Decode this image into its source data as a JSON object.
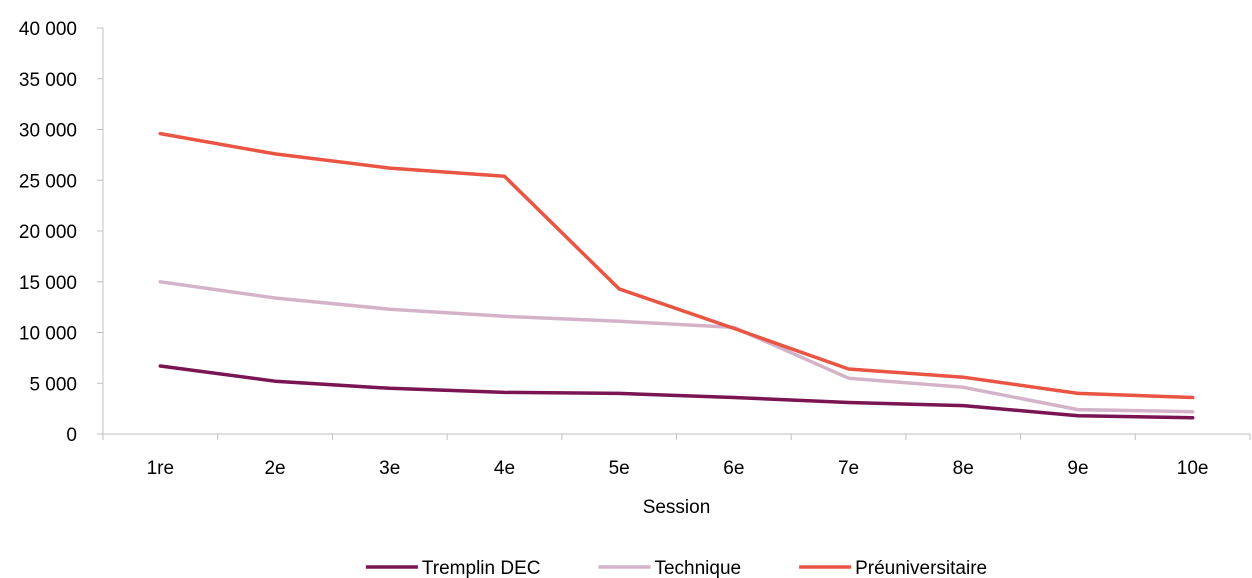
{
  "chart_data": {
    "type": "line",
    "xlabel": "Session",
    "ylabel": "",
    "ylim": [
      0,
      40000
    ],
    "yticks": [
      0,
      5000,
      10000,
      15000,
      20000,
      25000,
      30000,
      35000,
      40000
    ],
    "ytick_labels": [
      "0",
      "5 000",
      "10 000",
      "15 000",
      "20 000",
      "25 000",
      "30 000",
      "35 000",
      "40 000"
    ],
    "categories": [
      "1re",
      "2e",
      "3e",
      "4e",
      "5e",
      "6e",
      "7e",
      "8e",
      "9e",
      "10e"
    ],
    "grid": false,
    "legend_position": "bottom",
    "series": [
      {
        "name": "Tremplin DEC",
        "color": "#7b1452",
        "values": [
          6700,
          5200,
          4500,
          4100,
          4000,
          3600,
          3100,
          2800,
          1800,
          1600
        ]
      },
      {
        "name": "Technique",
        "color": "#d4b3c9",
        "values": [
          15000,
          13400,
          12300,
          11600,
          11100,
          10500,
          5500,
          4600,
          2400,
          2200
        ]
      },
      {
        "name": "Préuniversitaire",
        "color": "#e95443",
        "values": [
          29600,
          27600,
          26200,
          25400,
          14300,
          10400,
          6400,
          5600,
          4000,
          3600
        ]
      }
    ]
  }
}
